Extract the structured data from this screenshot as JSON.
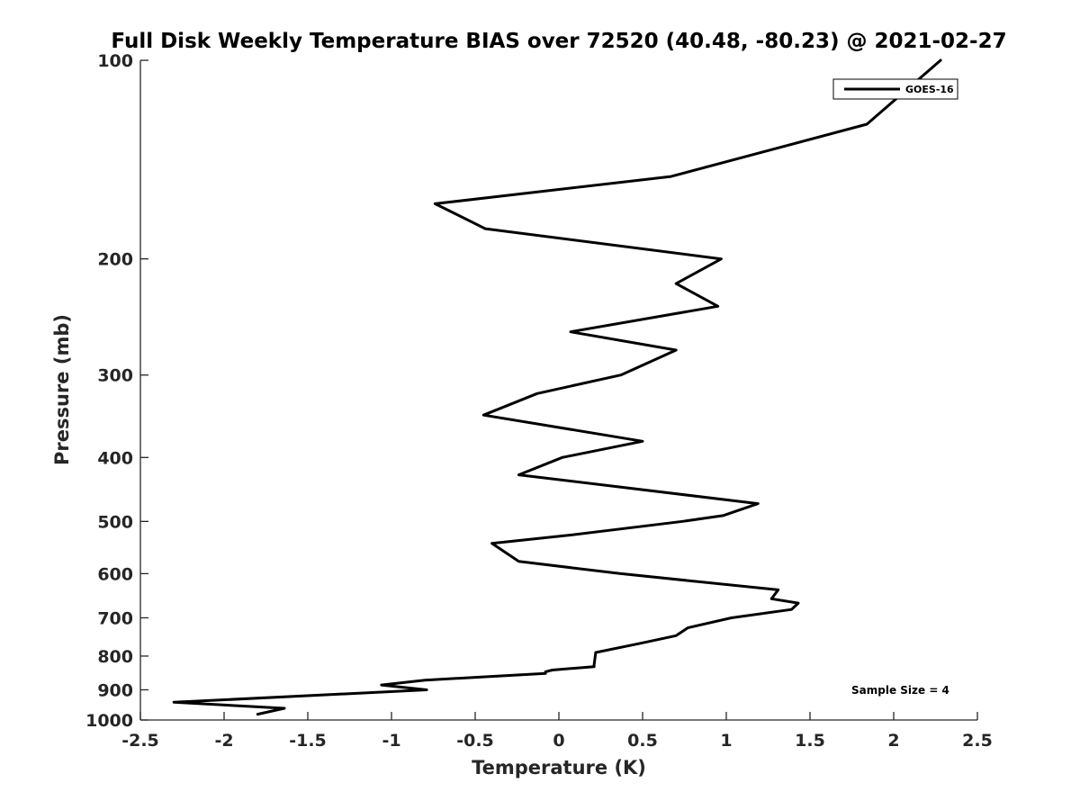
{
  "chart_data": {
    "type": "line",
    "title": "Full Disk Weekly Temperature BIAS over 72520 (40.48, -80.23) @ 2021-02-27",
    "xlabel": "Temperature (K)",
    "ylabel": "Pressure (mb)",
    "xlim": [
      -2.5,
      2.5
    ],
    "ylim": [
      100,
      1000
    ],
    "y_scale": "log",
    "y_reversed": true,
    "x_ticks": [
      "-2.5",
      "-2",
      "-1.5",
      "-1",
      "-0.5",
      "0",
      "0.5",
      "1",
      "1.5",
      "2",
      "2.5"
    ],
    "y_ticks": [
      "100",
      "200",
      "300",
      "400",
      "500",
      "600",
      "700",
      "800",
      "900",
      "1000"
    ],
    "grid": false,
    "legend_position": "top-right",
    "series": [
      {
        "name": "GOES-16",
        "color": "#000000",
        "points": [
          [
            2.28,
            100
          ],
          [
            1.84,
            125
          ],
          [
            0.67,
            150
          ],
          [
            -0.74,
            165
          ],
          [
            -0.44,
            180
          ],
          [
            0.97,
            200
          ],
          [
            0.7,
            218
          ],
          [
            0.95,
            236
          ],
          [
            0.07,
            258
          ],
          [
            0.7,
            275
          ],
          [
            0.37,
            300
          ],
          [
            -0.13,
            320
          ],
          [
            -0.45,
            345
          ],
          [
            0.5,
            378
          ],
          [
            0.02,
            400
          ],
          [
            -0.24,
            425
          ],
          [
            1.19,
            470
          ],
          [
            0.98,
            490
          ],
          [
            0.74,
            500
          ],
          [
            0.05,
            525
          ],
          [
            -0.4,
            540
          ],
          [
            -0.24,
            575
          ],
          [
            0.37,
            600
          ],
          [
            1.31,
            635
          ],
          [
            1.27,
            655
          ],
          [
            1.43,
            665
          ],
          [
            1.39,
            680
          ],
          [
            1.03,
            700
          ],
          [
            0.77,
            725
          ],
          [
            0.7,
            745
          ],
          [
            0.49,
            765
          ],
          [
            0.22,
            790
          ],
          [
            0.21,
            825
          ],
          [
            0.21,
            830
          ],
          [
            -0.04,
            840
          ],
          [
            -0.08,
            845
          ],
          [
            -0.08,
            850
          ],
          [
            -0.8,
            870
          ],
          [
            -1.06,
            885
          ],
          [
            -0.79,
            900
          ],
          [
            -2.3,
            940
          ],
          [
            -1.64,
            960
          ],
          [
            -1.8,
            980
          ]
        ]
      }
    ],
    "annotation": "Sample Size = 4"
  }
}
